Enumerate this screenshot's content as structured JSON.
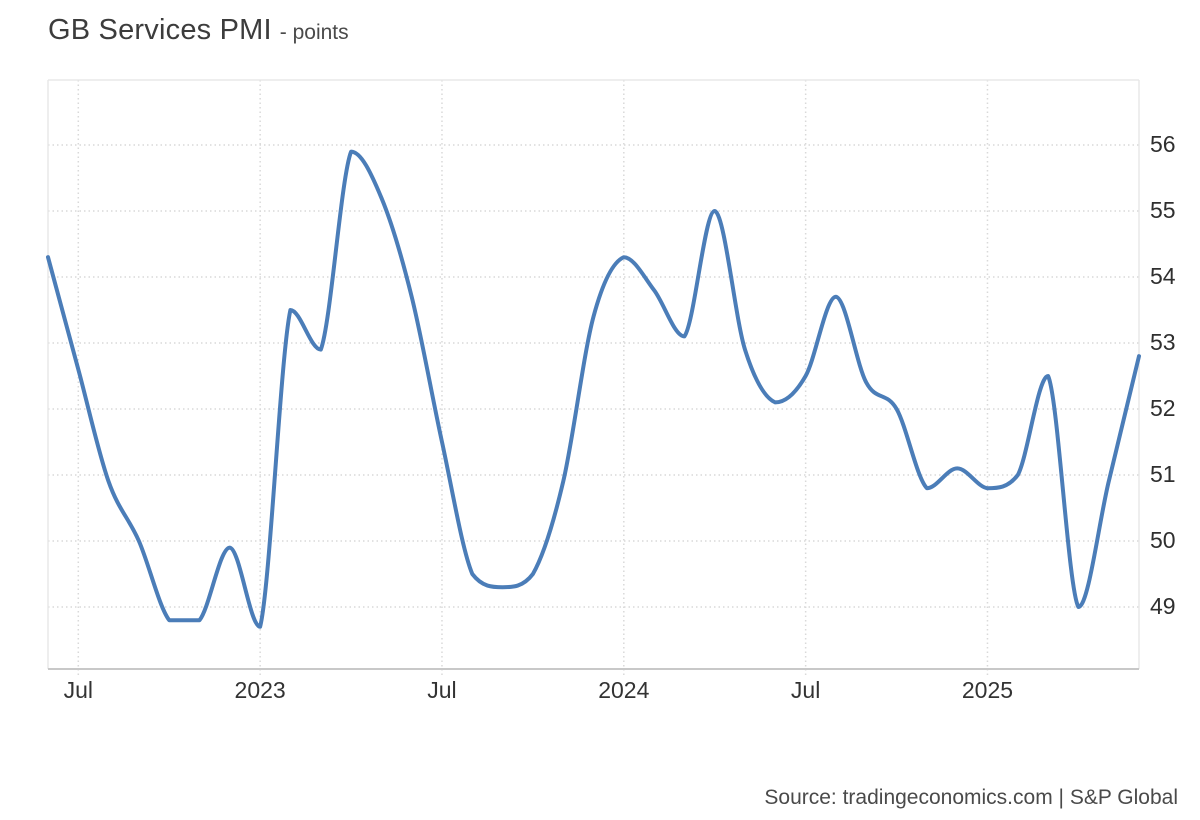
{
  "header": {
    "title": "GB Services PMI",
    "unit_label": "- points"
  },
  "footer": {
    "source": "Source: tradingeconomics.com | S&P Global"
  },
  "chart_data": {
    "type": "line",
    "title": "GB Services PMI",
    "ylabel": "points",
    "series_name": "GB Services PMI",
    "x": [
      "2022-06",
      "2022-07",
      "2022-08",
      "2022-09",
      "2022-10",
      "2022-11",
      "2022-12",
      "2023-01",
      "2023-02",
      "2023-03",
      "2023-04",
      "2023-05",
      "2023-06",
      "2023-07",
      "2023-08",
      "2023-09",
      "2023-10",
      "2023-11",
      "2023-12",
      "2024-01",
      "2024-02",
      "2024-03",
      "2024-04",
      "2024-05",
      "2024-06",
      "2024-07",
      "2024-08",
      "2024-09",
      "2024-10",
      "2024-11",
      "2024-12",
      "2025-01",
      "2025-02",
      "2025-03",
      "2025-04",
      "2025-05",
      "2025-06"
    ],
    "values": [
      54.3,
      52.6,
      50.9,
      50.0,
      48.8,
      48.8,
      49.9,
      48.7,
      53.5,
      52.9,
      55.9,
      55.2,
      53.7,
      51.5,
      49.5,
      49.3,
      49.5,
      50.9,
      53.4,
      54.3,
      53.8,
      53.1,
      55.0,
      52.9,
      52.1,
      52.5,
      53.7,
      52.4,
      52.0,
      50.8,
      51.1,
      50.8,
      51.0,
      52.5,
      49.0,
      50.9,
      52.8
    ],
    "y_ticks": [
      "49",
      "50",
      "51",
      "52",
      "53",
      "54",
      "55",
      "56"
    ],
    "x_ticks": [
      {
        "label": "Jul",
        "index": 1
      },
      {
        "label": "2023",
        "index": 7
      },
      {
        "label": "Jul",
        "index": 13
      },
      {
        "label": "2024",
        "index": 19
      },
      {
        "label": "Jul",
        "index": 25
      },
      {
        "label": "2025",
        "index": 31
      }
    ],
    "ylim": [
      48.1,
      57.0
    ],
    "grid": "dotted",
    "legend": "none",
    "line_color": "#4b7db8",
    "grid_color": "#d9d9d9",
    "border_color": "#e8e8e8",
    "axis_color": "#c8c8c8"
  }
}
